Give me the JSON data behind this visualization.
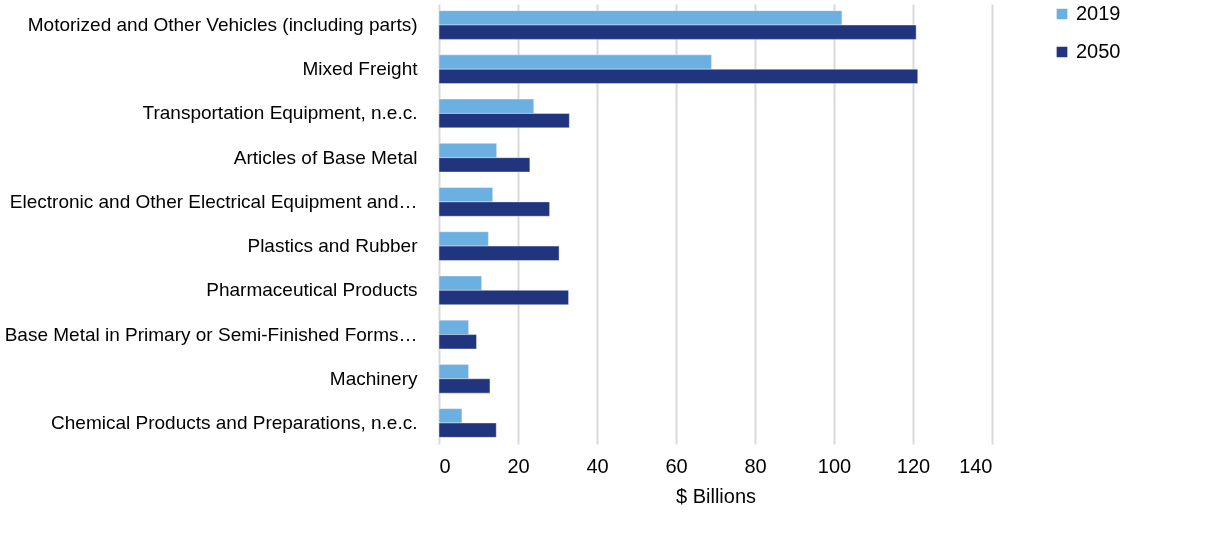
{
  "chart_data": {
    "type": "bar",
    "orientation": "horizontal",
    "xlabel": "$  Billions",
    "categories": [
      "Motorized and Other Vehicles (including parts)",
      "Mixed Freight",
      "Transportation Equipment, n.e.c.",
      "Articles of Base Metal",
      "Electronic and Other Electrical Equipment and…",
      "Plastics and Rubber",
      "Pharmaceutical Products",
      "Base Metal in Primary or Semi-Finished Forms…",
      "Machinery",
      "Chemical Products and Preparations, n.e.c."
    ],
    "series": [
      {
        "name": "2019",
        "color": "#6cafe1",
        "values": [
          102,
          69,
          24,
          14.6,
          13.6,
          12.5,
          10.8,
          7.5,
          7.5,
          5.8
        ]
      },
      {
        "name": "2050",
        "color": "#21357f",
        "values": [
          120.8,
          121.2,
          33,
          23,
          28,
          30.4,
          32.8,
          9.5,
          12.9,
          14.5
        ]
      }
    ],
    "xlim": [
      0,
      140
    ],
    "xticks": [
      0,
      20,
      40,
      60,
      80,
      100,
      120,
      140
    ],
    "grid": "x",
    "legend": "right"
  }
}
